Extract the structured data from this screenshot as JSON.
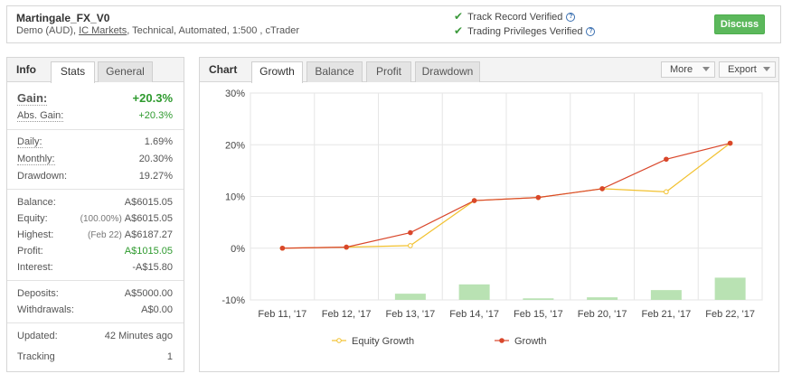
{
  "header": {
    "system_name": "Martingale_FX_V0",
    "meta_prefix": "Demo (AUD), ",
    "broker_link": "IC Markets",
    "meta_suffix": ", Technical, Automated, 1:500 , cTrader",
    "track_record": "Track Record Verified",
    "trading_privileges": "Trading Privileges Verified",
    "discuss_label": "Discuss"
  },
  "info": {
    "title": "Info",
    "tabs": [
      "Stats",
      "General"
    ],
    "gain": {
      "label": "Gain:",
      "value": "+20.3%"
    },
    "abs_gain": {
      "label": "Abs. Gain:",
      "value": "+20.3%"
    },
    "daily": {
      "label": "Daily:",
      "value": "1.69%"
    },
    "monthly": {
      "label": "Monthly:",
      "value": "20.30%"
    },
    "drawdown": {
      "label": "Drawdown:",
      "value": "19.27%"
    },
    "balance": {
      "label": "Balance:",
      "value": "A$6015.05"
    },
    "equity": {
      "label": "Equity:",
      "pct": "(100.00%)",
      "value": "A$6015.05"
    },
    "highest": {
      "label": "Highest:",
      "date": "(Feb 22)",
      "value": "A$6187.27"
    },
    "profit": {
      "label": "Profit:",
      "value": "A$1015.05"
    },
    "interest": {
      "label": "Interest:",
      "value": "-A$15.80"
    },
    "deposits": {
      "label": "Deposits:",
      "value": "A$5000.00"
    },
    "withdrawals": {
      "label": "Withdrawals:",
      "value": "A$0.00"
    },
    "updated": {
      "label": "Updated:",
      "value": "42 Minutes ago"
    },
    "tracking": {
      "label": "Tracking",
      "value": "1"
    }
  },
  "chart_panel": {
    "title": "Chart",
    "tabs": [
      "Growth",
      "Balance",
      "Profit",
      "Drawdown"
    ],
    "more_label": "More",
    "export_label": "Export"
  },
  "colors": {
    "green": "#5cb85c",
    "growth_line": "#d9472b",
    "equity_line": "#f2c12e",
    "bar": "#b9e2b3"
  },
  "chart_data": {
    "type": "line",
    "categories": [
      "Feb 11, '17",
      "Feb 12, '17",
      "Feb 13, '17",
      "Feb 14, '17",
      "Feb 15, '17",
      "Feb 20, '17",
      "Feb 21, '17",
      "Feb 22, '17"
    ],
    "y_ticks": [
      "30%",
      "20%",
      "10%",
      "0%",
      "-10%"
    ],
    "ylim": [
      -10,
      30
    ],
    "grid": true,
    "legend_position": "bottom",
    "series": [
      {
        "name": "Equity Growth",
        "values": [
          0,
          0.2,
          0.5,
          9.2,
          9.8,
          11.5,
          10.9,
          20.3
        ]
      },
      {
        "name": "Growth",
        "values": [
          0,
          0.2,
          3.0,
          9.2,
          9.8,
          11.5,
          17.2,
          20.3
        ]
      }
    ],
    "bars": [
      0,
      0,
      1.2,
      3.0,
      0.3,
      0.5,
      1.9,
      4.3
    ]
  }
}
